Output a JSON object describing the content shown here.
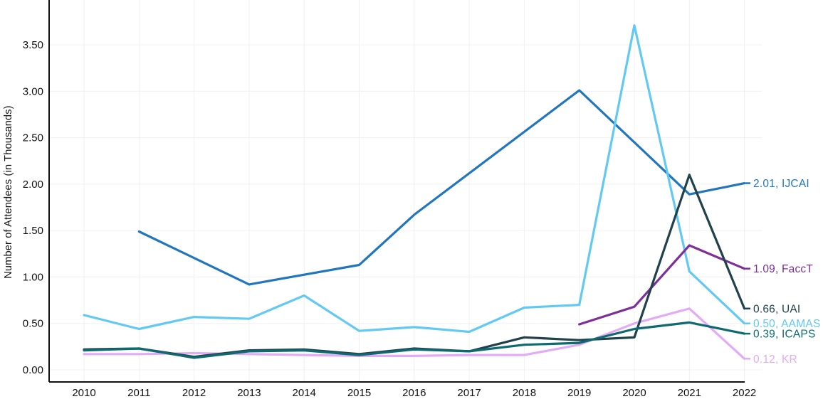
{
  "chart_data": {
    "type": "line",
    "title": "",
    "xlabel": "",
    "ylabel": "Number of Attendees (in Thousands)",
    "x_tick_labels": [
      "2010",
      "2011",
      "2012",
      "2013",
      "2014",
      "2015",
      "2016",
      "2017",
      "2018",
      "2019",
      "2020",
      "2021",
      "2022"
    ],
    "y_tick_labels": [
      "0.00",
      "0.50",
      "1.00",
      "1.50",
      "2.00",
      "2.50",
      "3.00",
      "3.50"
    ],
    "xlim": [
      2010,
      2022
    ],
    "ylim": [
      0,
      3.85
    ],
    "grid": true,
    "legend_position": "right-end-labels",
    "series": [
      {
        "name": "IJCAI",
        "color": "#2176bd",
        "end_label": "2.01, IJCAI",
        "points": [
          [
            2011,
            1.49
          ],
          [
            2013,
            0.92
          ],
          [
            2015,
            1.13
          ],
          [
            2016,
            1.67
          ],
          [
            2019,
            3.01
          ],
          [
            2021,
            1.89
          ],
          [
            2022,
            2.01
          ]
        ]
      },
      {
        "name": "AAMAS",
        "color": "#62c9f3",
        "end_label": "0.50, AAMAS",
        "points": [
          [
            2010,
            0.59
          ],
          [
            2011,
            0.44
          ],
          [
            2012,
            0.57
          ],
          [
            2013,
            0.55
          ],
          [
            2014,
            0.8
          ],
          [
            2015,
            0.42
          ],
          [
            2016,
            0.46
          ],
          [
            2017,
            0.41
          ],
          [
            2018,
            0.67
          ],
          [
            2019,
            0.7
          ],
          [
            2020,
            3.71
          ],
          [
            2021,
            1.06
          ],
          [
            2022,
            0.5
          ]
        ]
      },
      {
        "name": "KR",
        "color": "#e3abf7",
        "end_label": "0.12, KR",
        "points": [
          [
            2010,
            0.17
          ],
          [
            2011,
            0.17
          ],
          [
            2012,
            0.18
          ],
          [
            2013,
            0.17
          ],
          [
            2014,
            0.16
          ],
          [
            2015,
            0.15
          ],
          [
            2016,
            0.15
          ],
          [
            2017,
            0.16
          ],
          [
            2018,
            0.16
          ],
          [
            2019,
            0.27
          ],
          [
            2020,
            0.5
          ],
          [
            2021,
            0.66
          ],
          [
            2022,
            0.12
          ]
        ]
      },
      {
        "name": "FaccT",
        "color": "#7e2f9a",
        "end_label": "1.09, FaccT",
        "points": [
          [
            2019,
            0.49
          ],
          [
            2020,
            0.68
          ],
          [
            2021,
            1.34
          ],
          [
            2022,
            1.09
          ]
        ]
      },
      {
        "name": "UAI",
        "color": "#21424c",
        "end_label": "0.66, UAI",
        "points": [
          [
            2010,
            0.22
          ],
          [
            2011,
            0.23
          ],
          [
            2012,
            0.14
          ],
          [
            2013,
            0.21
          ],
          [
            2014,
            0.22
          ],
          [
            2015,
            0.17
          ],
          [
            2016,
            0.23
          ],
          [
            2017,
            0.2
          ],
          [
            2018,
            0.35
          ],
          [
            2019,
            0.32
          ],
          [
            2020,
            0.35
          ],
          [
            2021,
            2.1
          ],
          [
            2022,
            0.66
          ]
        ]
      },
      {
        "name": "ICAPS",
        "color": "#0e6a70",
        "end_label": "0.39, ICAPS",
        "points": [
          [
            2010,
            0.21
          ],
          [
            2011,
            0.23
          ],
          [
            2012,
            0.13
          ],
          [
            2013,
            0.2
          ],
          [
            2014,
            0.21
          ],
          [
            2015,
            0.16
          ],
          [
            2016,
            0.22
          ],
          [
            2017,
            0.2
          ],
          [
            2018,
            0.27
          ],
          [
            2019,
            0.29
          ],
          [
            2020,
            0.44
          ],
          [
            2021,
            0.51
          ],
          [
            2022,
            0.39
          ]
        ]
      }
    ],
    "style": {
      "axis_color": "#111111",
      "grid_color": "#f0f0f0",
      "background": "#ffffff"
    }
  }
}
